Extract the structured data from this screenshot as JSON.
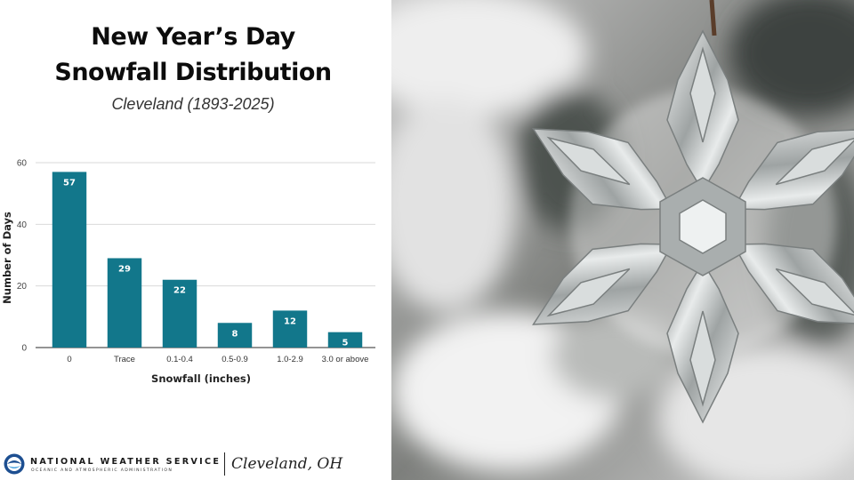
{
  "header": {
    "title_line1": "New Year’s Day",
    "title_line2": "Snowfall Distribution",
    "subtitle": "Cleveland (1893-2025)"
  },
  "chart_data": {
    "type": "bar",
    "categories": [
      "0",
      "Trace",
      "0.1-0.4",
      "0.5-0.9",
      "1.0-2.9",
      "3.0 or above"
    ],
    "values": [
      57,
      29,
      22,
      8,
      12,
      5
    ],
    "data_labels": [
      "57",
      "29",
      "22",
      "8",
      "12",
      "5"
    ],
    "xlabel": "Snowfall (inches)",
    "ylabel": "Number of Days",
    "ylim": [
      0,
      60
    ],
    "yticks": [
      0,
      20,
      40,
      60
    ],
    "grid": true,
    "bar_color": "#12778b"
  },
  "footer": {
    "agency": "NATIONAL WEATHER SERVICE",
    "agency_sub": "OCEANIC AND ATMOSPHERIC ADMINISTRATION",
    "office": "Cleveland, OH"
  },
  "colors": {
    "bar": "#12778b",
    "grid": "#d9d9d9",
    "noaa_blue": "#1d4f91"
  },
  "photo": {
    "icon": "snowflake-ornament-photo"
  }
}
